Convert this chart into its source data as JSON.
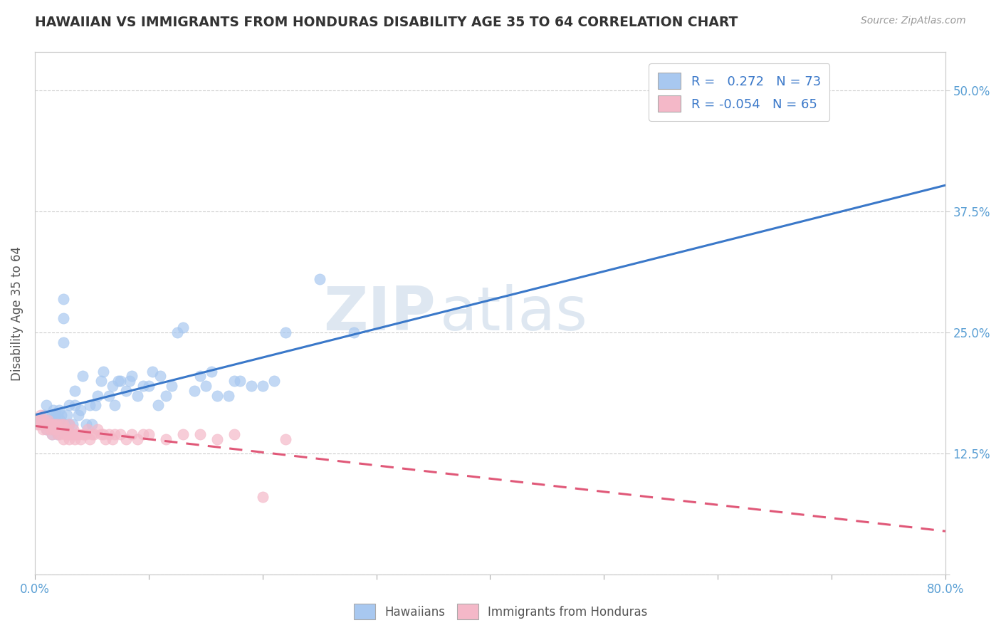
{
  "title": "HAWAIIAN VS IMMIGRANTS FROM HONDURAS DISABILITY AGE 35 TO 64 CORRELATION CHART",
  "source": "Source: ZipAtlas.com",
  "ylabel": "Disability Age 35 to 64",
  "xlim": [
    0.0,
    0.8
  ],
  "ylim": [
    0.0,
    0.54
  ],
  "xticks": [
    0.0,
    0.1,
    0.2,
    0.3,
    0.4,
    0.5,
    0.6,
    0.7,
    0.8
  ],
  "xticklabels": [
    "0.0%",
    "",
    "",
    "",
    "",
    "",
    "",
    "",
    "80.0%"
  ],
  "yticks": [
    0.0,
    0.125,
    0.25,
    0.375,
    0.5
  ],
  "yticklabels_right": [
    "",
    "12.5%",
    "25.0%",
    "37.5%",
    "50.0%"
  ],
  "hawaiian_R": "0.272",
  "hawaiian_N": "73",
  "honduras_R": "-0.054",
  "honduras_N": "65",
  "hawaiian_color": "#a8c8f0",
  "honduras_color": "#f4b8c8",
  "hawaiian_line_color": "#3a78c9",
  "honduras_line_color": "#e05878",
  "tick_color": "#5a9fd4",
  "watermark_zip": "ZIP",
  "watermark_atlas": "atlas",
  "hawaiian_points_x": [
    0.005,
    0.007,
    0.008,
    0.01,
    0.01,
    0.012,
    0.013,
    0.015,
    0.015,
    0.015,
    0.016,
    0.018,
    0.018,
    0.02,
    0.02,
    0.02,
    0.021,
    0.022,
    0.022,
    0.023,
    0.025,
    0.025,
    0.025,
    0.026,
    0.028,
    0.028,
    0.03,
    0.03,
    0.033,
    0.035,
    0.035,
    0.038,
    0.04,
    0.042,
    0.045,
    0.048,
    0.05,
    0.053,
    0.055,
    0.058,
    0.06,
    0.065,
    0.068,
    0.07,
    0.073,
    0.075,
    0.08,
    0.083,
    0.085,
    0.09,
    0.095,
    0.1,
    0.103,
    0.108,
    0.11,
    0.115,
    0.12,
    0.125,
    0.13,
    0.14,
    0.145,
    0.15,
    0.155,
    0.16,
    0.17,
    0.175,
    0.18,
    0.19,
    0.2,
    0.21,
    0.22,
    0.25,
    0.28
  ],
  "hawaiian_points_y": [
    0.16,
    0.155,
    0.165,
    0.15,
    0.175,
    0.155,
    0.16,
    0.145,
    0.155,
    0.165,
    0.17,
    0.155,
    0.165,
    0.145,
    0.15,
    0.165,
    0.17,
    0.155,
    0.16,
    0.165,
    0.24,
    0.265,
    0.285,
    0.155,
    0.15,
    0.165,
    0.155,
    0.175,
    0.155,
    0.175,
    0.19,
    0.165,
    0.17,
    0.205,
    0.155,
    0.175,
    0.155,
    0.175,
    0.185,
    0.2,
    0.21,
    0.185,
    0.195,
    0.175,
    0.2,
    0.2,
    0.19,
    0.2,
    0.205,
    0.185,
    0.195,
    0.195,
    0.21,
    0.175,
    0.205,
    0.185,
    0.195,
    0.25,
    0.255,
    0.19,
    0.205,
    0.195,
    0.21,
    0.185,
    0.185,
    0.2,
    0.2,
    0.195,
    0.195,
    0.2,
    0.25,
    0.305,
    0.25
  ],
  "honduras_points_x": [
    0.002,
    0.003,
    0.004,
    0.005,
    0.006,
    0.007,
    0.008,
    0.009,
    0.01,
    0.011,
    0.012,
    0.013,
    0.014,
    0.015,
    0.015,
    0.016,
    0.017,
    0.018,
    0.019,
    0.02,
    0.02,
    0.021,
    0.022,
    0.023,
    0.025,
    0.025,
    0.026,
    0.028,
    0.029,
    0.03,
    0.03,
    0.031,
    0.033,
    0.034,
    0.035,
    0.036,
    0.038,
    0.04,
    0.042,
    0.043,
    0.045,
    0.046,
    0.048,
    0.05,
    0.052,
    0.055,
    0.058,
    0.06,
    0.062,
    0.065,
    0.068,
    0.07,
    0.075,
    0.08,
    0.085,
    0.09,
    0.095,
    0.1,
    0.115,
    0.13,
    0.145,
    0.16,
    0.175,
    0.2,
    0.22
  ],
  "honduras_points_y": [
    0.155,
    0.16,
    0.155,
    0.165,
    0.155,
    0.15,
    0.16,
    0.155,
    0.15,
    0.16,
    0.155,
    0.155,
    0.15,
    0.145,
    0.155,
    0.155,
    0.15,
    0.155,
    0.15,
    0.145,
    0.155,
    0.15,
    0.145,
    0.155,
    0.14,
    0.155,
    0.145,
    0.15,
    0.145,
    0.14,
    0.155,
    0.145,
    0.145,
    0.15,
    0.14,
    0.145,
    0.145,
    0.14,
    0.145,
    0.145,
    0.145,
    0.15,
    0.14,
    0.145,
    0.145,
    0.15,
    0.145,
    0.145,
    0.14,
    0.145,
    0.14,
    0.145,
    0.145,
    0.14,
    0.145,
    0.14,
    0.145,
    0.145,
    0.14,
    0.145,
    0.145,
    0.14,
    0.145,
    0.08,
    0.14
  ]
}
